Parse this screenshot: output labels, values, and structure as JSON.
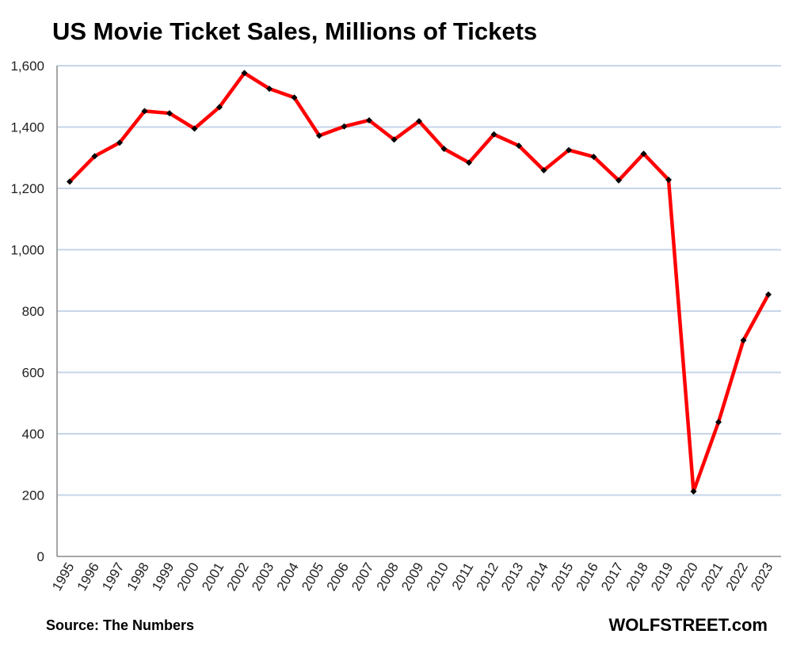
{
  "chart_data": {
    "type": "line",
    "title": "US Movie Ticket Sales, Millions of Tickets",
    "xlabel": "",
    "ylabel": "",
    "ylim": [
      0,
      1600
    ],
    "yticks": [
      0,
      200,
      400,
      600,
      800,
      1000,
      1200,
      1400,
      1600
    ],
    "ytick_labels": [
      "0",
      "200",
      "400",
      "600",
      "800",
      "1,000",
      "1,200",
      "1,400",
      "1,600"
    ],
    "grid": true,
    "categories": [
      "1995",
      "1996",
      "1997",
      "1998",
      "1999",
      "2000",
      "2001",
      "2002",
      "2003",
      "2004",
      "2005",
      "2006",
      "2007",
      "2008",
      "2009",
      "2010",
      "2011",
      "2012",
      "2013",
      "2014",
      "2015",
      "2016",
      "2017",
      "2018",
      "2019",
      "2020",
      "2021",
      "2022",
      "2023"
    ],
    "series": [
      {
        "name": "Tickets sold (millions)",
        "color": "#ff0000",
        "marker_color": "#000000",
        "values": [
          1222,
          1305,
          1349,
          1452,
          1445,
          1395,
          1465,
          1576,
          1525,
          1496,
          1372,
          1402,
          1422,
          1359,
          1419,
          1329,
          1284,
          1376,
          1339,
          1259,
          1325,
          1303,
          1226,
          1313,
          1228,
          212,
          438,
          705,
          854
        ]
      }
    ],
    "source": "Source: The Numbers",
    "brand": "WOLFSTREET.com"
  }
}
